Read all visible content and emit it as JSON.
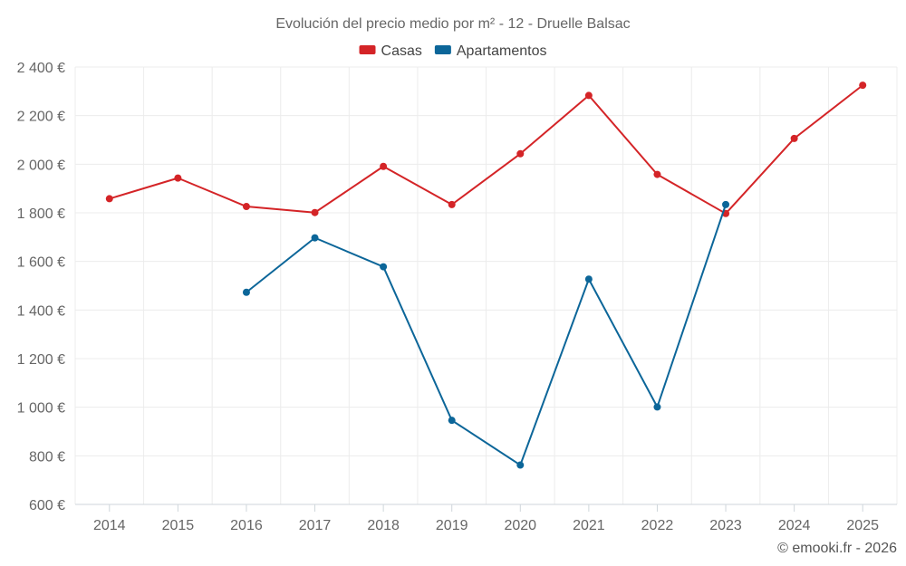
{
  "chart_data": {
    "type": "line",
    "title": "Evolución del precio medio por m² - 12 - Druelle Balsac",
    "categories": [
      "2014",
      "2015",
      "2016",
      "2017",
      "2018",
      "2019",
      "2020",
      "2021",
      "2022",
      "2023",
      "2024",
      "2025"
    ],
    "ylim": [
      600,
      2400
    ],
    "yticks": [
      600,
      800,
      1000,
      1200,
      1400,
      1600,
      1800,
      2000,
      2200,
      2400
    ],
    "ytick_labels": [
      "600 €",
      "800 €",
      "1 000 €",
      "1 200 €",
      "1 400 €",
      "1 600 €",
      "1 800 €",
      "2 000 €",
      "2 200 €",
      "2 400 €"
    ],
    "grid": true,
    "legend_position": "top-center",
    "series": [
      {
        "name": "Casas",
        "color": "#d42427",
        "values": [
          1858,
          1943,
          1826,
          1801,
          1991,
          1834,
          2043,
          2283,
          1958,
          1797,
          2106,
          2325
        ]
      },
      {
        "name": "Apartamentos",
        "color": "#0c6699",
        "values": [
          null,
          null,
          1473,
          1697,
          1578,
          946,
          762,
          1527,
          1001,
          1834,
          null,
          null
        ]
      }
    ]
  },
  "credit": "© emooki.fr - 2026"
}
